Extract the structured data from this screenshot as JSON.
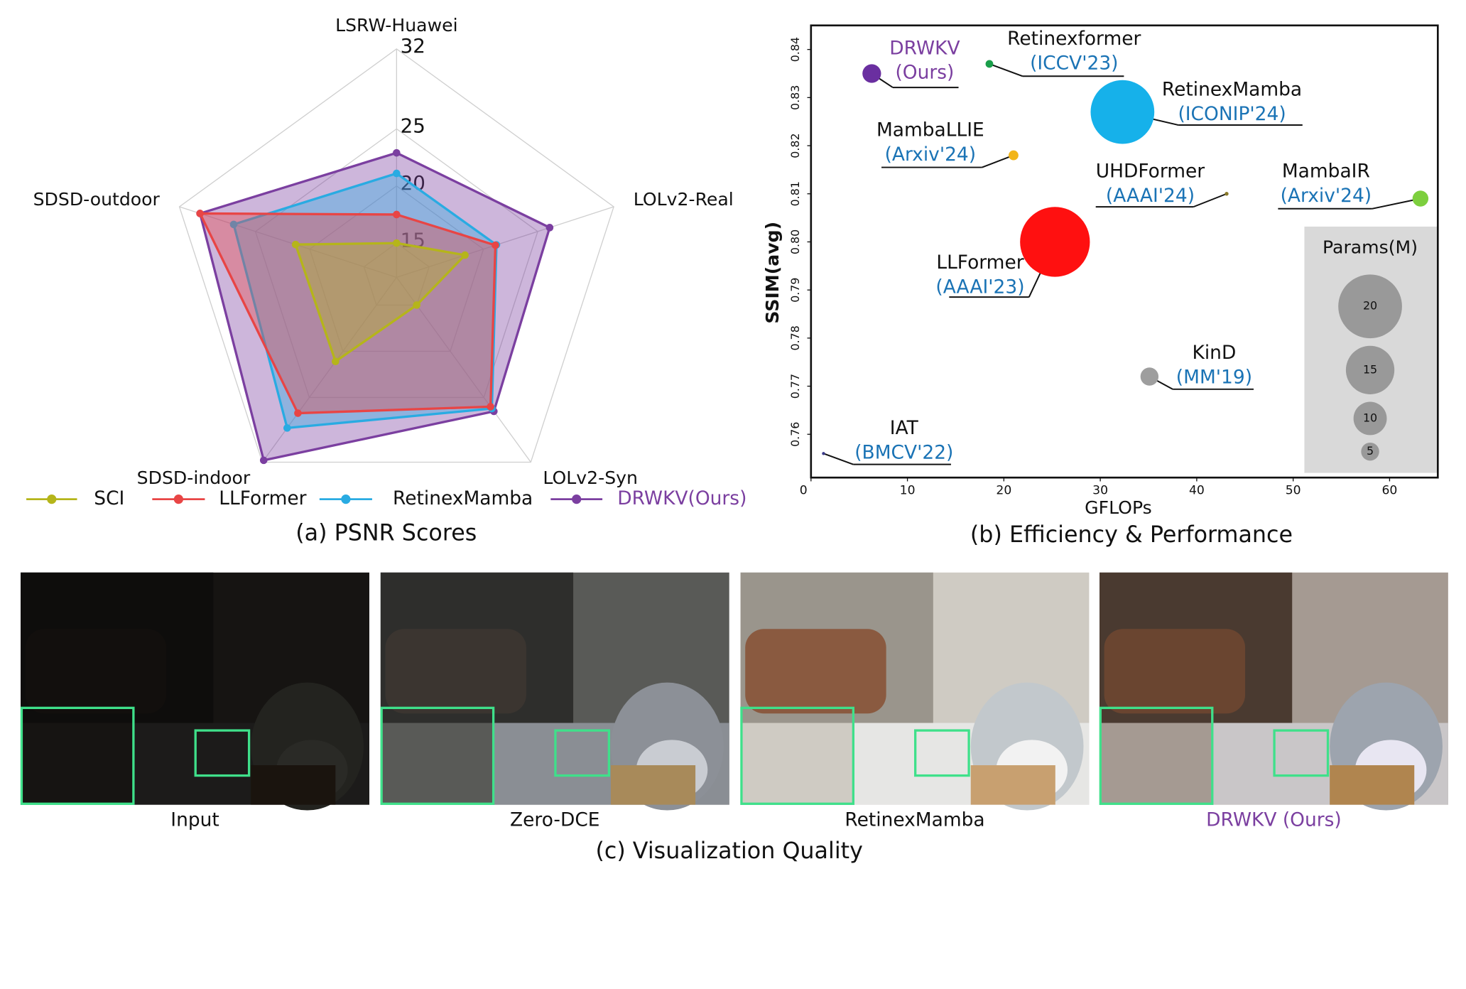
{
  "chart_data": [
    {
      "type": "radar",
      "title": "(a) PSNR Scores",
      "categories": [
        "LSRW-Huawei",
        "LOLv2-Real",
        "LOLv2-Syn",
        "SDSD-indoor",
        "SDSD-outdoor"
      ],
      "rlim": [
        12,
        32
      ],
      "rticks": [
        15,
        20,
        25,
        32
      ],
      "series": [
        {
          "name": "SCI",
          "color": "#b5b51a",
          "values": [
            15.0,
            18.3,
            15.0,
            21.1,
            21.3
          ]
        },
        {
          "name": "LLFormer",
          "color": "#e84545",
          "values": [
            17.5,
            21.1,
            26.0,
            26.7,
            30.1
          ]
        },
        {
          "name": "RetinexMamba",
          "color": "#29abe2",
          "values": [
            21.1,
            21.2,
            26.2,
            28.3,
            27.0
          ]
        },
        {
          "name": "DRWKV(Ours)",
          "color": "#7b3fa0",
          "text_color": "#7b3fa0",
          "values": [
            22.9,
            26.1,
            26.5,
            31.8,
            30.1
          ]
        }
      ]
    },
    {
      "type": "bubble",
      "title": "(b) Efficiency & Performance",
      "x_label": "GFLOPs",
      "y_label": "SSIM(avg)",
      "xlim": [
        0,
        65
      ],
      "xticks": [
        0,
        10,
        20,
        30,
        40,
        50,
        60
      ],
      "ylim": [
        0.751,
        0.845
      ],
      "yticks": [
        0.76,
        0.77,
        0.78,
        0.79,
        {
          "value": 0.8,
          "label": "0.80"
        },
        0.81,
        0.82,
        0.83,
        0.84
      ],
      "points": [
        {
          "name": "DRWKV",
          "venue": "(Ours)",
          "color": "#6a2fa0",
          "text_color": "#7b3fa0",
          "x": 6.3,
          "y": 0.835,
          "size": 5.2
        },
        {
          "name": "Retinexformer",
          "venue": "(ICCV'23)",
          "color": "#1a9e4a",
          "x": 18.5,
          "y": 0.837,
          "size": 1.6
        },
        {
          "name": "RetinexMamba",
          "venue": "(ICONIP'24)",
          "color": "#16b1ea",
          "x": 32.3,
          "y": 0.827,
          "size": 20
        },
        {
          "name": "MambaLLIE",
          "venue": "(Arxiv'24)",
          "color": "#f2b519",
          "x": 21.0,
          "y": 0.818,
          "size": 2.3
        },
        {
          "name": "UHDFormer",
          "venue": "(AAAI'24)",
          "color": "#8a7a2a",
          "x": 43.1,
          "y": 0.81,
          "size": 0.34
        },
        {
          "name": "MambaIR",
          "venue": "(Arxiv'24)",
          "color": "#7dcf3e",
          "x": 63.2,
          "y": 0.809,
          "size": 4.3
        },
        {
          "name": "LLFormer",
          "venue": "(AAAI'23)",
          "color": "#ff1010",
          "x": 25.3,
          "y": 0.8,
          "size": 22
        },
        {
          "name": "KinD",
          "venue": "(MM'19)",
          "color": "#9e9e9e",
          "x": 35.1,
          "y": 0.772,
          "size": 5
        },
        {
          "name": "IAT",
          "venue": "(BMCV'22)",
          "color": "#3a3a8a",
          "x": 1.3,
          "y": 0.756,
          "size": 0.09
        }
      ],
      "size_legend": {
        "title": "Params(M)",
        "color": "#999999",
        "values": [
          20,
          15,
          10,
          5
        ]
      }
    }
  ],
  "visualization": {
    "title": "(c) Visualization Quality",
    "panels": [
      {
        "label": "Input"
      },
      {
        "label": "Zero-DCE"
      },
      {
        "label": "RetinexMamba"
      },
      {
        "label": "DRWKV (Ours)",
        "text_color": "#7b3fa0"
      }
    ]
  }
}
